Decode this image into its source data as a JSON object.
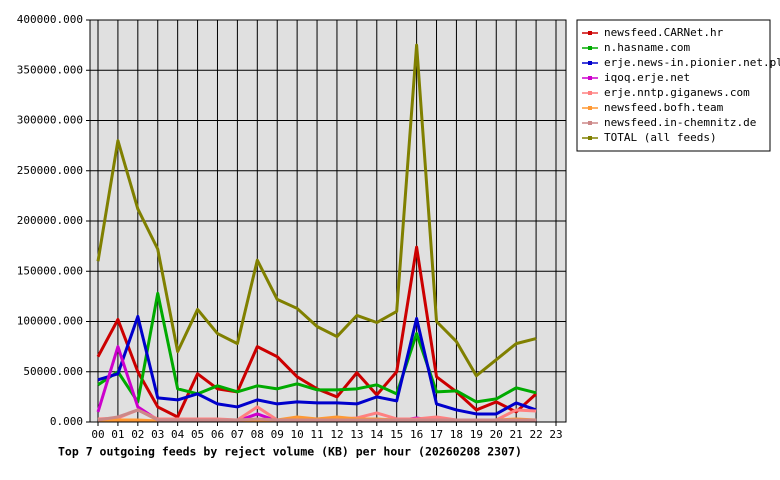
{
  "chart_data": {
    "type": "line",
    "title": "Top 7 outgoing feeds by reject volume (KB) per hour (20260208 2307)",
    "categories": [
      "00",
      "01",
      "02",
      "03",
      "04",
      "05",
      "06",
      "07",
      "08",
      "09",
      "10",
      "11",
      "12",
      "13",
      "14",
      "15",
      "16",
      "17",
      "18",
      "19",
      "20",
      "21",
      "22",
      "23"
    ],
    "ylim": [
      0,
      400000
    ],
    "yticks": [
      {
        "value": 0,
        "label": "0.000"
      },
      {
        "value": 50000,
        "label": "50000.000"
      },
      {
        "value": 100000,
        "label": "100000.000"
      },
      {
        "value": 150000,
        "label": "150000.000"
      },
      {
        "value": 200000,
        "label": "200000.000"
      },
      {
        "value": 250000,
        "label": "250000.000"
      },
      {
        "value": 300000,
        "label": "300000.000"
      },
      {
        "value": 350000,
        "label": "350000.000"
      },
      {
        "value": 400000,
        "label": "400000.000"
      }
    ],
    "grid": true,
    "legend": "right",
    "series": [
      {
        "name": "newsfeed.CARNet.hr",
        "color": "#cc0000",
        "values": [
          65000,
          102000,
          50000,
          15000,
          5000,
          48000,
          33000,
          30000,
          75000,
          65000,
          45000,
          33000,
          25000,
          49000,
          27000,
          50000,
          174000,
          45000,
          30000,
          12000,
          20000,
          10000,
          28000,
          null
        ]
      },
      {
        "name": "n.hasname.com",
        "color": "#00aa00",
        "values": [
          37000,
          50000,
          20000,
          128000,
          33000,
          28000,
          36000,
          30000,
          36000,
          33000,
          38000,
          32000,
          32000,
          33000,
          37000,
          28000,
          88000,
          30000,
          31000,
          20000,
          23000,
          34000,
          29000,
          null
        ]
      },
      {
        "name": "erje.news-in.pionier.net.pl",
        "color": "#0000cc",
        "values": [
          42000,
          48000,
          105000,
          24000,
          22000,
          28000,
          18000,
          15000,
          22000,
          18000,
          20000,
          19000,
          19000,
          18000,
          25000,
          21000,
          103000,
          18000,
          12000,
          8000,
          8000,
          19000,
          12000,
          null
        ]
      },
      {
        "name": "iqoq.erje.net",
        "color": "#cc00cc",
        "values": [
          10000,
          75000,
          15000,
          2000,
          1000,
          1000,
          1000,
          1000,
          8000,
          1000,
          1000,
          1000,
          1000,
          1000,
          1000,
          1000,
          4000,
          1000,
          1000,
          1000,
          1000,
          1000,
          1000,
          null
        ]
      },
      {
        "name": "erje.nntp.giganews.com",
        "color": "#ff8080",
        "values": [
          3000,
          4000,
          12000,
          3000,
          3000,
          3000,
          3000,
          2000,
          15000,
          2000,
          3000,
          3000,
          3000,
          4000,
          9000,
          3000,
          3000,
          5000,
          2000,
          2000,
          2000,
          12000,
          11000,
          null
        ]
      },
      {
        "name": "newsfeed.bofh.team",
        "color": "#ff9933",
        "values": [
          2000,
          2000,
          2000,
          1000,
          1000,
          2000,
          2000,
          1000,
          2000,
          2000,
          5000,
          3000,
          5000,
          3000,
          3000,
          2000,
          2000,
          2000,
          2000,
          2000,
          2000,
          3000,
          2000,
          null
        ]
      },
      {
        "name": "newsfeed.in-chemnitz.de",
        "color": "#cc8888",
        "values": [
          2000,
          5000,
          12000,
          2000,
          2000,
          2000,
          2000,
          2000,
          3000,
          2000,
          2000,
          2000,
          2000,
          2000,
          2000,
          2000,
          2000,
          2000,
          2000,
          2000,
          2000,
          2000,
          2000,
          null
        ]
      },
      {
        "name": "TOTAL (all feeds)",
        "color": "#808000",
        "values": [
          160000,
          280000,
          212000,
          172000,
          70000,
          112000,
          88000,
          78000,
          161000,
          122000,
          113000,
          95000,
          85000,
          106000,
          99000,
          110000,
          375000,
          100000,
          80000,
          46000,
          62000,
          78000,
          83000,
          null
        ]
      }
    ]
  }
}
